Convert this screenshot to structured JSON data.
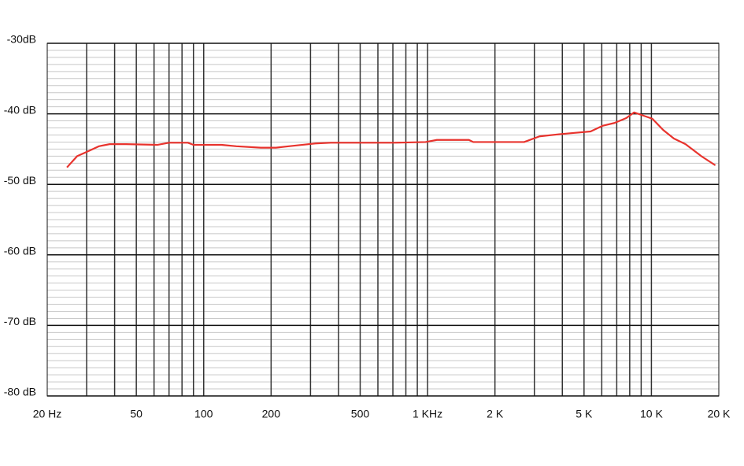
{
  "chart_data": {
    "type": "line",
    "xscale": "log",
    "xlim": [
      20,
      20000
    ],
    "ylim": [
      -80,
      -30
    ],
    "xticks": [
      {
        "value": 20,
        "label": "20 Hz"
      },
      50,
      100,
      200,
      500,
      {
        "value": 1000,
        "label": "1 KHz"
      },
      {
        "value": 2000,
        "label": "2 K"
      },
      {
        "value": 5000,
        "label": "5 K"
      },
      {
        "value": 10000,
        "label": "10 K"
      },
      {
        "value": 20000,
        "label": "20 K"
      }
    ],
    "xgrid": [
      30,
      40,
      50,
      60,
      70,
      80,
      90,
      100,
      200,
      300,
      400,
      500,
      600,
      700,
      800,
      900,
      1000,
      2000,
      3000,
      4000,
      5000,
      6000,
      7000,
      8000,
      9000,
      10000
    ],
    "yticks": [
      {
        "value": -30,
        "label": "-30dB"
      },
      {
        "value": -40,
        "label": "-40 dB"
      },
      {
        "value": -50,
        "label": "-50 dB"
      },
      {
        "value": -60,
        "label": "-60 dB"
      },
      {
        "value": -70,
        "label": "-70 dB"
      },
      {
        "value": -80,
        "label": "-80 dB"
      }
    ],
    "yminor_step": 1,
    "series": [
      {
        "color": "#e8332d",
        "x": [
          24.5,
          27.2,
          30,
          34,
          38,
          45,
          62,
          70,
          85,
          90,
          120,
          140,
          180,
          210,
          240,
          315,
          370,
          710,
          980,
          1100,
          1530,
          1600,
          2700,
          3160,
          3870,
          4530,
          5350,
          6050,
          6830,
          7720,
          8370,
          9100,
          10100,
          11300,
          12600,
          14200,
          16700,
          19300
        ],
        "values": [
          -47.6,
          -46.0,
          -45.4,
          -44.6,
          -44.3,
          -44.3,
          -44.4,
          -44.1,
          -44.1,
          -44.4,
          -44.4,
          -44.6,
          -44.8,
          -44.8,
          -44.6,
          -44.2,
          -44.1,
          -44.1,
          -44.0,
          -43.7,
          -43.7,
          -44.0,
          -44.0,
          -43.2,
          -42.9,
          -42.7,
          -42.5,
          -41.7,
          -41.3,
          -40.6,
          -39.8,
          -40.2,
          -40.7,
          -42.3,
          -43.5,
          -44.3,
          -46.0,
          -47.3
        ]
      }
    ]
  }
}
